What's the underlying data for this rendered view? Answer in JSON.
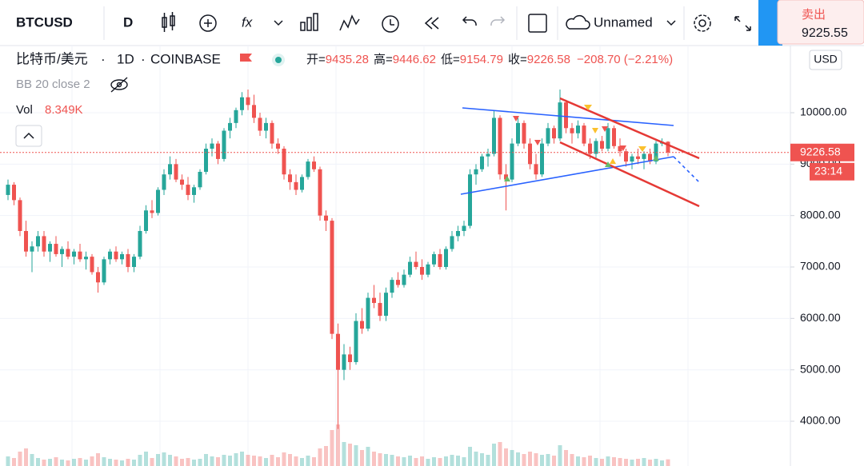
{
  "toolbar": {
    "symbol": "BTCUSD",
    "interval": "D",
    "indicators": "fx",
    "layout_name": "Unnamed",
    "sell_label": "卖出",
    "sell_price": "9225.55"
  },
  "chart_data": {
    "type": "candlestick",
    "symbol_name": "比特币/美元",
    "separator": "·",
    "interval": "1D",
    "exchange": "COINBASE",
    "legend_labels": [
      "开=",
      "高=",
      "低=",
      "收="
    ],
    "change_label": "−208.70 (−2.21%)",
    "indicator": "BB 20 close 2",
    "volume_label": "Vol",
    "volume_value": "8.349K",
    "currency": "USD",
    "last_price": 9226.58,
    "countdown": "23:14",
    "ylim": [
      3130,
      11290
    ],
    "yticks": [
      {
        "value": 4000,
        "label": "4000.00"
      },
      {
        "value": 5000,
        "label": "5000.00"
      },
      {
        "value": 6000,
        "label": "6000.00"
      },
      {
        "value": 7000,
        "label": "7000.00"
      },
      {
        "value": 8000,
        "label": "8000.00"
      },
      {
        "value": 9000,
        "label": "9000.00"
      },
      {
        "value": 10000,
        "label": "10000.00"
      }
    ],
    "grid": true,
    "up_color": "#26a69a",
    "down_color": "#ef5350",
    "ohlc": [
      [
        8400,
        8700,
        8300,
        8600
      ],
      [
        8600,
        8650,
        8200,
        8300
      ],
      [
        8300,
        8350,
        7600,
        7700
      ],
      [
        7700,
        7900,
        7200,
        7300
      ],
      [
        7300,
        7500,
        6900,
        7400
      ],
      [
        7400,
        7700,
        7300,
        7600
      ],
      [
        7600,
        7700,
        7200,
        7300
      ],
      [
        7300,
        7500,
        7100,
        7450
      ],
      [
        7450,
        7600,
        7200,
        7250
      ],
      [
        7250,
        7400,
        7000,
        7350
      ],
      [
        7350,
        7500,
        7150,
        7200
      ],
      [
        7200,
        7350,
        7050,
        7300
      ],
      [
        7300,
        7450,
        7100,
        7150
      ],
      [
        7150,
        7300,
        6950,
        7200
      ],
      [
        7200,
        7250,
        6850,
        6900
      ],
      [
        6900,
        7000,
        6500,
        6700
      ],
      [
        6700,
        7200,
        6650,
        7150
      ],
      [
        7150,
        7350,
        7050,
        7300
      ],
      [
        7300,
        7400,
        7100,
        7150
      ],
      [
        7150,
        7300,
        7050,
        7250
      ],
      [
        7250,
        7350,
        6900,
        7000
      ],
      [
        7000,
        7250,
        6900,
        7200
      ],
      [
        7200,
        7800,
        7150,
        7700
      ],
      [
        7700,
        8200,
        7650,
        8100
      ],
      [
        8100,
        8300,
        7950,
        8050
      ],
      [
        8050,
        8550,
        8000,
        8500
      ],
      [
        8500,
        8900,
        8400,
        8800
      ],
      [
        8800,
        9150,
        8700,
        9000
      ],
      [
        9000,
        9100,
        8650,
        8700
      ],
      [
        8700,
        8800,
        8500,
        8600
      ],
      [
        8600,
        8750,
        8300,
        8400
      ],
      [
        8400,
        8600,
        8250,
        8550
      ],
      [
        8550,
        8900,
        8500,
        8850
      ],
      [
        8850,
        9400,
        8800,
        9300
      ],
      [
        9300,
        9500,
        9150,
        9400
      ],
      [
        9400,
        9450,
        9000,
        9100
      ],
      [
        9100,
        9700,
        9050,
        9650
      ],
      [
        9650,
        9900,
        9500,
        9800
      ],
      [
        9800,
        10100,
        9700,
        10050
      ],
      [
        10050,
        10400,
        9950,
        10300
      ],
      [
        10300,
        10450,
        10050,
        10150
      ],
      [
        10150,
        10350,
        9800,
        9900
      ],
      [
        9900,
        10000,
        9550,
        9650
      ],
      [
        9650,
        9900,
        9500,
        9800
      ],
      [
        9800,
        9850,
        9300,
        9400
      ],
      [
        9400,
        9500,
        9200,
        9300
      ],
      [
        9300,
        9350,
        8700,
        8800
      ],
      [
        8800,
        8900,
        8500,
        8650
      ],
      [
        8650,
        8800,
        8400,
        8500
      ],
      [
        8500,
        8800,
        8450,
        8750
      ],
      [
        8750,
        9100,
        8700,
        9050
      ],
      [
        9050,
        9150,
        8850,
        8900
      ],
      [
        8900,
        8950,
        7900,
        8000
      ],
      [
        8000,
        8100,
        7700,
        7900
      ],
      [
        7900,
        7950,
        5600,
        5700
      ],
      [
        5700,
        5900,
        3850,
        5000
      ],
      [
        5000,
        5500,
        4800,
        5300
      ],
      [
        5300,
        5450,
        5000,
        5150
      ],
      [
        5150,
        6100,
        5100,
        5950
      ],
      [
        5950,
        6200,
        5700,
        5800
      ],
      [
        5800,
        6500,
        5750,
        6400
      ],
      [
        6400,
        6650,
        6200,
        6300
      ],
      [
        6300,
        6500,
        5950,
        6050
      ],
      [
        6050,
        6600,
        5950,
        6500
      ],
      [
        6500,
        6800,
        6400,
        6750
      ],
      [
        6750,
        6900,
        6600,
        6650
      ],
      [
        6650,
        6950,
        6600,
        6850
      ],
      [
        6850,
        7200,
        6800,
        7100
      ],
      [
        7100,
        7300,
        6950,
        7000
      ],
      [
        7000,
        7150,
        6750,
        6850
      ],
      [
        6850,
        7100,
        6800,
        7050
      ],
      [
        7050,
        7300,
        7000,
        7250
      ],
      [
        7250,
        7350,
        6950,
        7000
      ],
      [
        7000,
        7400,
        6950,
        7350
      ],
      [
        7350,
        7700,
        7300,
        7600
      ],
      [
        7600,
        7800,
        7500,
        7700
      ],
      [
        7700,
        7900,
        7600,
        7800
      ],
      [
        7800,
        8900,
        7750,
        8800
      ],
      [
        8800,
        9000,
        8600,
        8900
      ],
      [
        8900,
        9200,
        8850,
        9150
      ],
      [
        9150,
        9300,
        8950,
        9200
      ],
      [
        9200,
        10050,
        9150,
        9900
      ],
      [
        9900,
        9950,
        8700,
        8800
      ],
      [
        8800,
        9000,
        8100,
        8700
      ],
      [
        8700,
        9500,
        8650,
        9400
      ],
      [
        9400,
        9900,
        9350,
        9800
      ],
      [
        9800,
        9850,
        9300,
        9400
      ],
      [
        9400,
        9500,
        8900,
        9000
      ],
      [
        9000,
        9200,
        8700,
        8800
      ],
      [
        8800,
        9500,
        8750,
        9400
      ],
      [
        9400,
        9800,
        9350,
        9700
      ],
      [
        9700,
        9750,
        9400,
        9500
      ],
      [
        9500,
        10450,
        9450,
        10200
      ],
      [
        10200,
        10250,
        9600,
        9700
      ],
      [
        9700,
        9800,
        9400,
        9600
      ],
      [
        9600,
        9850,
        9500,
        9750
      ],
      [
        9750,
        9800,
        9350,
        9400
      ],
      [
        9400,
        9500,
        9100,
        9200
      ],
      [
        9200,
        9500,
        9100,
        9450
      ],
      [
        9450,
        9550,
        9250,
        9300
      ],
      [
        9300,
        9800,
        9250,
        9700
      ],
      [
        9700,
        9750,
        9300,
        9350
      ],
      [
        9350,
        9500,
        9150,
        9250
      ],
      [
        9250,
        9300,
        8950,
        9050
      ],
      [
        9050,
        9200,
        8900,
        9150
      ],
      [
        9150,
        9300,
        9000,
        9100
      ],
      [
        9100,
        9250,
        8900,
        9200
      ],
      [
        9200,
        9300,
        9000,
        9050
      ],
      [
        9050,
        9450,
        9000,
        9400
      ],
      [
        9400,
        9500,
        9350,
        9435.28
      ],
      [
        9435.28,
        9446.62,
        9154.79,
        9226.58
      ]
    ],
    "volume": [
      12,
      10,
      18,
      22,
      15,
      10,
      8,
      9,
      11,
      8,
      7,
      9,
      10,
      8,
      12,
      16,
      11,
      9,
      8,
      7,
      9,
      8,
      14,
      18,
      10,
      15,
      17,
      14,
      12,
      9,
      10,
      8,
      9,
      15,
      12,
      11,
      14,
      13,
      16,
      18,
      14,
      13,
      12,
      10,
      14,
      11,
      17,
      15,
      12,
      10,
      13,
      11,
      22,
      25,
      45,
      52,
      30,
      28,
      26,
      20,
      24,
      18,
      16,
      15,
      14,
      12,
      11,
      13,
      10,
      12,
      9,
      11,
      10,
      12,
      14,
      13,
      11,
      24,
      18,
      16,
      14,
      28,
      30,
      22,
      20,
      17,
      15,
      18,
      16,
      14,
      15,
      13,
      26,
      20,
      15,
      12,
      11,
      13,
      10,
      9,
      12,
      11,
      10,
      9,
      8,
      9,
      10,
      8,
      9,
      7,
      8.349
    ],
    "volume_lim": [
      0,
      60
    ]
  }
}
